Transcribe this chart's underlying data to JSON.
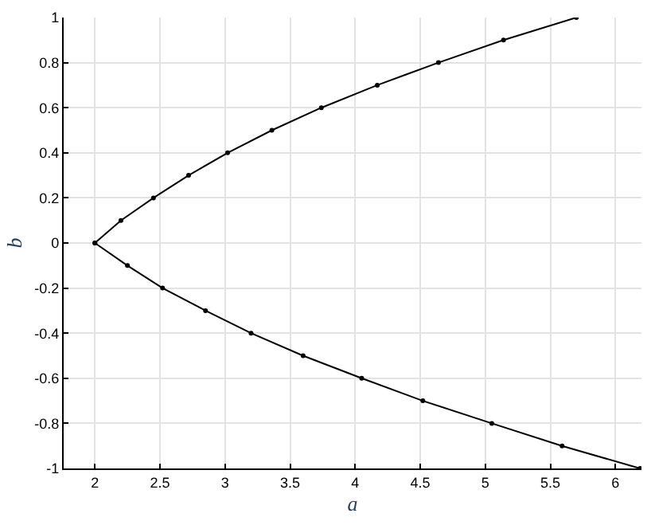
{
  "chart_data": {
    "type": "line",
    "xlabel": "a",
    "ylabel": "b",
    "series": [
      {
        "color": "#000000",
        "x": [
          2,
          2.2,
          2.45,
          2.72,
          3.02,
          3.36,
          3.74,
          4.17,
          4.64,
          5.14,
          5.7
        ],
        "values": [
          0,
          0.1,
          0.2,
          0.3,
          0.4,
          0.5,
          0.6,
          0.7,
          0.8,
          0.9,
          1
        ]
      },
      {
        "color": "#000000",
        "x": [
          2,
          2.25,
          2.52,
          2.85,
          3.2,
          3.6,
          4.05,
          4.52,
          5.05,
          5.59,
          6.19
        ],
        "values": [
          0,
          -0.1,
          -0.2,
          -0.3,
          -0.4,
          -0.5,
          -0.6,
          -0.7,
          -0.8,
          -0.9,
          -1
        ]
      }
    ],
    "xlim": [
      1.76,
      6.2
    ],
    "xticks": [
      2,
      2.5,
      3,
      3.5,
      4,
      4.5,
      5,
      5.5,
      6
    ],
    "ylim": [
      -1,
      1
    ],
    "yticks": [
      -1,
      -0.8,
      -0.6,
      -0.4,
      -0.2,
      0,
      0.2,
      0.4,
      0.6,
      0.8,
      1
    ],
    "grid": true,
    "marker": "circle",
    "line_style": "solid",
    "legend": false
  }
}
